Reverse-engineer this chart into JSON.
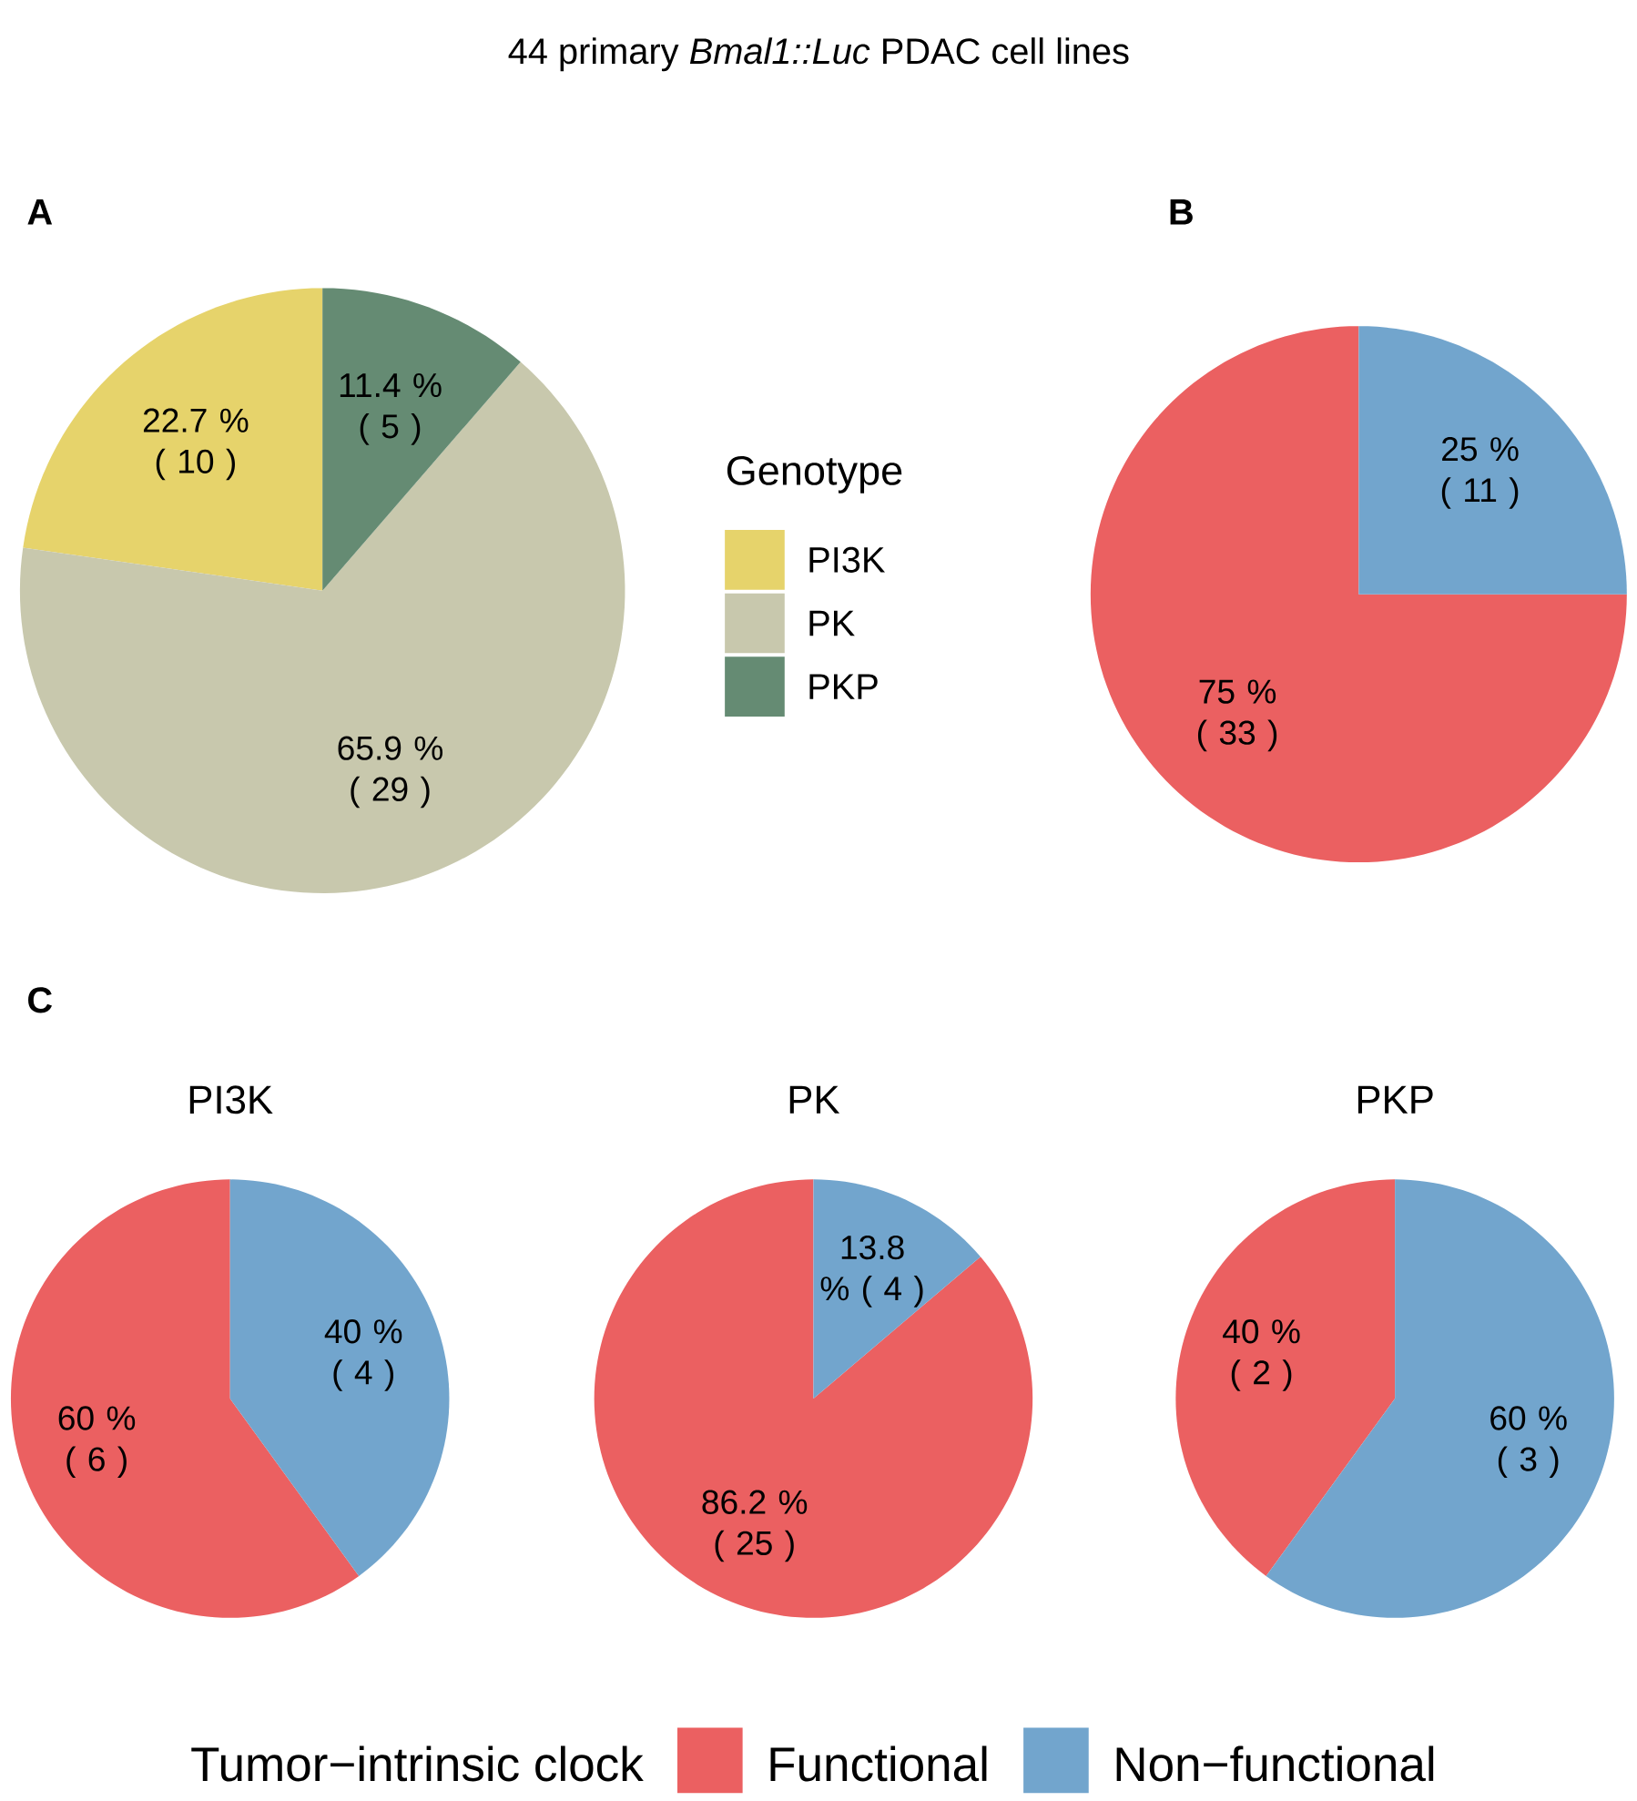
{
  "chart_data": [
    {
      "type": "pie",
      "title": "44 primary *Bmal1::Luc* PDAC cell lines",
      "categories": [
        "PI3K",
        "PK",
        "PKP"
      ],
      "values": [
        10,
        29,
        5
      ],
      "colors": [
        "#e6d36b",
        "#c8c8ad",
        "#658b73"
      ],
      "value_labels": [
        "22.7 % ( 10 )",
        "65.9 % ( 29 )",
        "11.4 % ( 5 )"
      ],
      "legend": "right",
      "legend_title": "Genotype",
      "annotations": [
        "A"
      ]
    },
    {
      "type": "pie",
      "categories": [
        null,
        null
      ],
      "values": [
        33,
        11
      ],
      "colors": [
        "#eb6061",
        "#72a5cd"
      ],
      "value_labels": [
        "75 % ( 33 )",
        "25 % ( 11 )"
      ],
      "annotations": [
        "B"
      ]
    },
    {
      "type": "pie",
      "title": "PI3K",
      "categories": [
        null,
        null
      ],
      "values": [
        6,
        4
      ],
      "colors": [
        "#eb6061",
        "#72a5cd"
      ],
      "value_labels": [
        "60 % ( 6 )",
        "40 % ( 4 )"
      ],
      "annotations": [
        "C"
      ]
    },
    {
      "type": "pie",
      "title": "PK",
      "categories": [
        "Functional",
        "Non−functional"
      ],
      "values": [
        25,
        4
      ],
      "colors": [
        "#eb6061",
        "#72a5cd"
      ],
      "value_labels": [
        "86.2 % ( 25 )",
        "13.8 % ( 4 )"
      ],
      "legend": "bottom",
      "legend_title": "Tumor−intrinsic clock"
    },
    {
      "type": "pie",
      "title": "PKP",
      "categories": [
        null,
        null
      ],
      "values": [
        2,
        3
      ],
      "colors": [
        "#eb6061",
        "#72a5cd"
      ],
      "value_labels": [
        "40 % ( 2 )",
        "60 % ( 3 )"
      ]
    }
  ]
}
